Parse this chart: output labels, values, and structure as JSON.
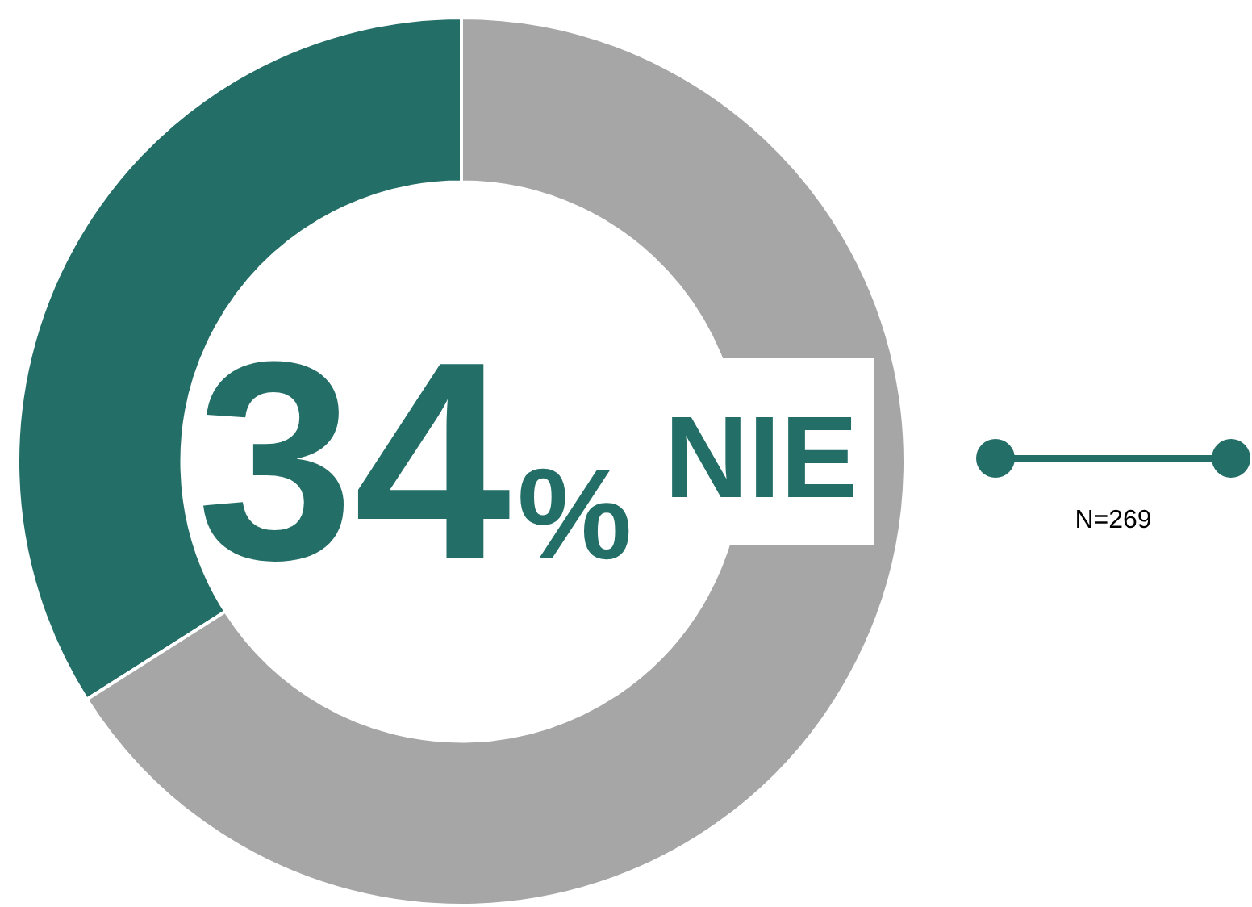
{
  "chart_data": {
    "type": "donut",
    "categories": [
      null,
      null
    ],
    "values": [
      34,
      66
    ],
    "colors": [
      "#236e67",
      "#a6a6a6"
    ],
    "annotations": [
      "34% NIE",
      "N=269"
    ]
  }
}
